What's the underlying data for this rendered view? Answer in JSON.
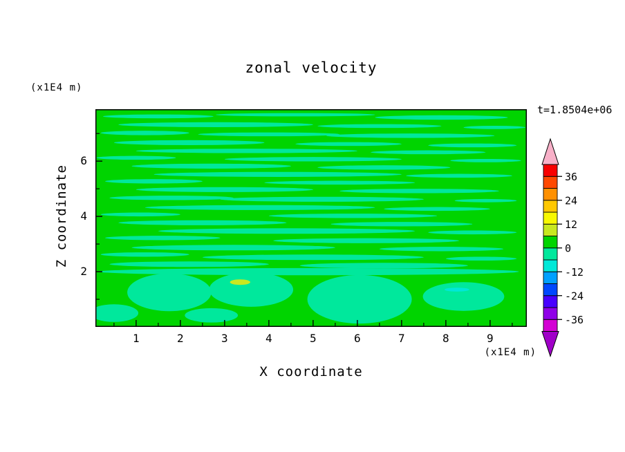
{
  "chart_data": {
    "type": "heatmap",
    "subtype": "filled_contour_plot",
    "title": "zonal velocity",
    "timestamp": "t=1.8504e+06",
    "xlabel": "X coordinate",
    "ylabel": "Z coordinate",
    "x_units": "(x1E4 m)",
    "y_units": "(x1E4 m)",
    "xlim": [
      0.08,
      9.83
    ],
    "ylim": [
      0,
      7.88
    ],
    "x_major_ticks": [
      1,
      2,
      3,
      4,
      5,
      6,
      7,
      8,
      9
    ],
    "x_minor_step": 0.5,
    "y_major_ticks": [
      2,
      4,
      6
    ],
    "y_minor_ticks": [
      1,
      3,
      5,
      7
    ],
    "contour_interval": 6,
    "background": {
      "level": "0to6",
      "color": "#00D400"
    },
    "field_description": "near-zero zonal velocity field: thin horizontal -6..0 streaks through upper layers, broad -6..0 blobs below z=2, one small +6..12 patch near (3.35,1.6), one small -12..-6 patch near (8.25,1.35)",
    "levels": {
      "-12to-6": "#00E8D8",
      "-6to0": "#00E89C",
      "0to6": "#00D400",
      "6to12": "#C8E820"
    },
    "features_format": [
      "level",
      "x",
      "z",
      "rx",
      "rz"
    ],
    "features": [
      [
        "-6to0",
        1.5,
        7.62,
        1.25,
        0.07
      ],
      [
        "-6to0",
        4.6,
        7.68,
        1.8,
        0.06
      ],
      [
        "-6to0",
        7.9,
        7.58,
        1.5,
        0.08
      ],
      [
        "-6to0",
        2.8,
        7.32,
        2.2,
        0.09
      ],
      [
        "-6to0",
        6.5,
        7.27,
        1.4,
        0.07
      ],
      [
        "-6to0",
        9.1,
        7.22,
        0.7,
        0.06
      ],
      [
        "-6to0",
        1.2,
        7.02,
        1.0,
        0.08
      ],
      [
        "-6to0",
        4.0,
        6.97,
        1.6,
        0.07
      ],
      [
        "-6to0",
        7.2,
        6.92,
        1.9,
        0.08
      ],
      [
        "-6to0",
        2.2,
        6.67,
        1.7,
        0.09
      ],
      [
        "-6to0",
        5.8,
        6.62,
        1.2,
        0.07
      ],
      [
        "-6to0",
        8.6,
        6.57,
        1.0,
        0.07
      ],
      [
        "-6to0",
        3.5,
        6.37,
        2.5,
        0.08
      ],
      [
        "-6to0",
        7.6,
        6.32,
        1.3,
        0.07
      ],
      [
        "-6to0",
        1.0,
        6.12,
        0.9,
        0.07
      ],
      [
        "-6to0",
        5.0,
        6.07,
        2.0,
        0.08
      ],
      [
        "-6to0",
        8.9,
        6.02,
        0.8,
        0.06
      ],
      [
        "-6to0",
        2.7,
        5.82,
        1.8,
        0.09
      ],
      [
        "-6to0",
        6.6,
        5.77,
        1.5,
        0.08
      ],
      [
        "-6to0",
        4.2,
        5.52,
        2.8,
        0.09
      ],
      [
        "-6to0",
        8.3,
        5.47,
        1.2,
        0.07
      ],
      [
        "-6to0",
        1.4,
        5.27,
        1.1,
        0.08
      ],
      [
        "-6to0",
        5.6,
        5.22,
        1.7,
        0.07
      ],
      [
        "-6to0",
        3.0,
        4.97,
        2.0,
        0.09
      ],
      [
        "-6to0",
        7.4,
        4.92,
        1.8,
        0.08
      ],
      [
        "-6to0",
        1.8,
        4.67,
        1.4,
        0.08
      ],
      [
        "-6to0",
        5.2,
        4.62,
        2.3,
        0.09
      ],
      [
        "-6to0",
        8.9,
        4.57,
        0.7,
        0.06
      ],
      [
        "-6to0",
        3.8,
        4.32,
        2.6,
        0.09
      ],
      [
        "-6to0",
        7.8,
        4.27,
        1.2,
        0.07
      ],
      [
        "-6to0",
        1.1,
        4.07,
        0.9,
        0.07
      ],
      [
        "-6to0",
        5.9,
        4.02,
        1.9,
        0.08
      ],
      [
        "-6to0",
        2.5,
        3.77,
        1.9,
        0.09
      ],
      [
        "-6to0",
        7.0,
        3.72,
        1.6,
        0.08
      ],
      [
        "-6to0",
        4.4,
        3.47,
        2.9,
        0.1
      ],
      [
        "-6to0",
        8.6,
        3.42,
        1.0,
        0.07
      ],
      [
        "-6to0",
        1.6,
        3.22,
        1.3,
        0.08
      ],
      [
        "-6to0",
        6.2,
        3.12,
        2.1,
        0.09
      ],
      [
        "-6to0",
        3.2,
        2.87,
        2.3,
        0.1
      ],
      [
        "-6to0",
        7.9,
        2.82,
        1.4,
        0.08
      ],
      [
        "-6to0",
        1.2,
        2.62,
        1.0,
        0.08
      ],
      [
        "-6to0",
        5.0,
        2.52,
        2.5,
        0.1
      ],
      [
        "-6to0",
        8.8,
        2.47,
        0.8,
        0.07
      ],
      [
        "-6to0",
        2.2,
        2.27,
        1.8,
        0.1
      ],
      [
        "-6to0",
        6.6,
        2.22,
        1.9,
        0.1
      ],
      [
        "-6to0",
        4.9,
        2.0,
        4.75,
        0.13
      ],
      [
        "-6to0",
        1.75,
        1.25,
        0.95,
        0.68
      ],
      [
        "-6to0",
        3.6,
        1.35,
        0.95,
        0.62
      ],
      [
        "-6to0",
        6.05,
        1.0,
        1.18,
        0.88
      ],
      [
        "-6to0",
        8.4,
        1.1,
        0.92,
        0.52
      ],
      [
        "-6to0",
        0.5,
        0.5,
        0.55,
        0.32
      ],
      [
        "-6to0",
        2.7,
        0.42,
        0.6,
        0.26
      ],
      [
        "6to12",
        3.35,
        1.62,
        0.23,
        0.1
      ],
      [
        "-12to-6",
        8.25,
        1.35,
        0.28,
        0.07
      ]
    ],
    "colorbar": {
      "tick_labels": [
        "36",
        "24",
        "12",
        "0",
        "-12",
        "-24",
        "-36"
      ],
      "tick_values": [
        36,
        24,
        12,
        0,
        -12,
        -24,
        -36
      ],
      "level_min": -42,
      "level_max": 42,
      "step": 6,
      "colors_bottom_to_top": [
        "#D400D4",
        "#9000E8",
        "#4800FF",
        "#0048FF",
        "#00A0FF",
        "#00E8D8",
        "#00E89C",
        "#00D400",
        "#C8E820",
        "#F8F800",
        "#FFC800",
        "#FF9000",
        "#FF4800",
        "#F80000"
      ],
      "under_arrow_color": "#A000C8",
      "over_arrow_color": "#F8B0C8"
    }
  }
}
